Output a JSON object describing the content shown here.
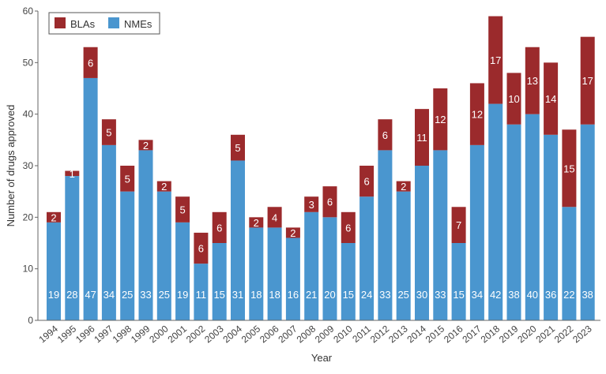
{
  "chart_data": {
    "type": "bar",
    "stacked": true,
    "xlabel": "Year",
    "ylabel": "Number of drugs approved",
    "ylim": [
      0,
      60
    ],
    "yticks": [
      0,
      10,
      20,
      30,
      40,
      50,
      60
    ],
    "grid": false,
    "legend": "top-left",
    "categories": [
      "1994",
      "1995",
      "1996",
      "1997",
      "1998",
      "1999",
      "2000",
      "2001",
      "2002",
      "2003",
      "2004",
      "2005",
      "2006",
      "2007",
      "2008",
      "2009",
      "2010",
      "2011",
      "2012",
      "2013",
      "2014",
      "2015",
      "2016",
      "2017",
      "2018",
      "2019",
      "2020",
      "2021",
      "2022",
      "2023"
    ],
    "series": [
      {
        "name": "NMEs",
        "color": "#4a96cf",
        "values": [
          19,
          28,
          47,
          34,
          25,
          33,
          25,
          19,
          11,
          15,
          31,
          18,
          18,
          16,
          21,
          20,
          15,
          24,
          33,
          25,
          30,
          33,
          15,
          34,
          42,
          38,
          40,
          36,
          22,
          38
        ]
      },
      {
        "name": "BLAs",
        "color": "#9b2a2c",
        "values": [
          2,
          1,
          6,
          5,
          5,
          2,
          2,
          5,
          6,
          6,
          5,
          2,
          4,
          2,
          3,
          6,
          6,
          6,
          6,
          2,
          11,
          12,
          7,
          12,
          17,
          10,
          13,
          14,
          15,
          17
        ]
      }
    ]
  }
}
